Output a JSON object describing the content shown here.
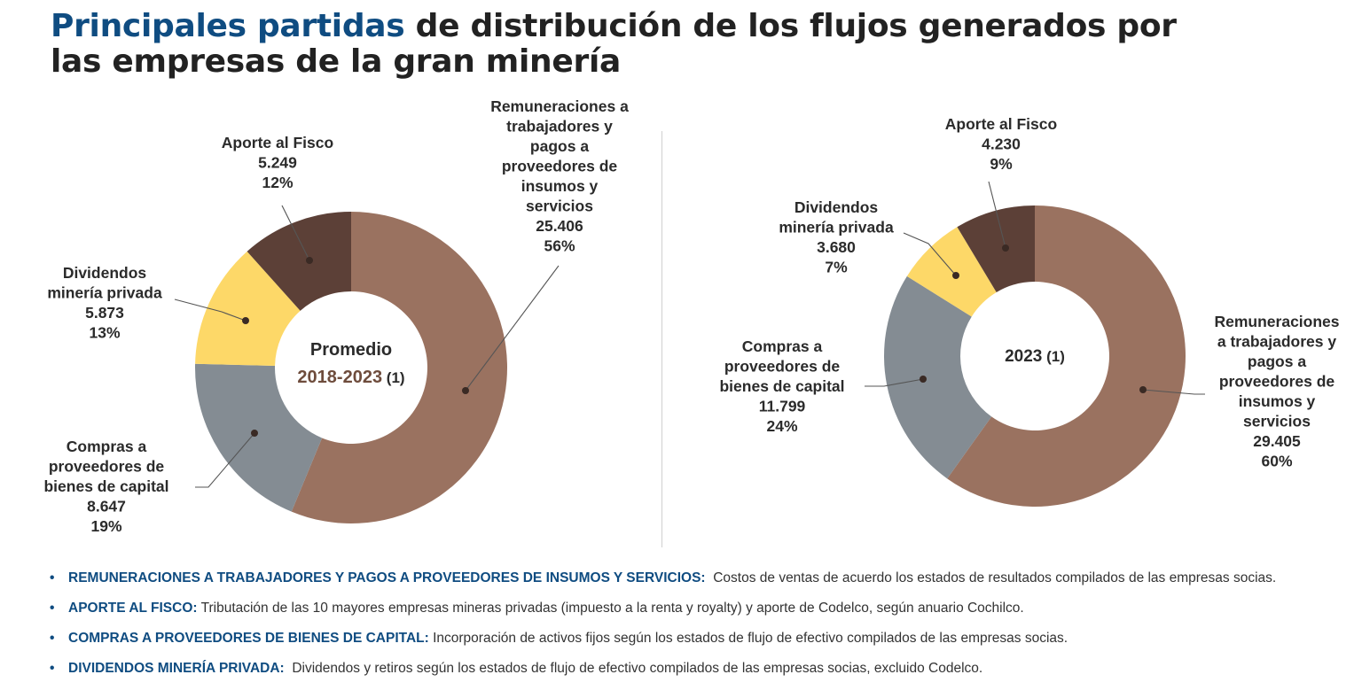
{
  "title": {
    "highlight": "Principales partidas",
    "rest_line1": " de distribución de los flujos generados por",
    "line2": "las empresas de la gran minería"
  },
  "colors": {
    "title_highlight": "#0f4c81",
    "remuneraciones": "#9a7260",
    "compras": "#848c93",
    "dividendos": "#fdd868",
    "fisco": "#5c4037",
    "center_year_avg": "#6e4c3c"
  },
  "chart_data": [
    {
      "type": "pie",
      "variant": "donut",
      "center_label": [
        "Promedio",
        "2018-2023",
        "(1)"
      ],
      "categories": [
        "Remuneraciones a trabajadores y pagos a proveedores de insumos y servicios",
        "Compras a proveedores de bienes de capital",
        "Dividendos minería privada",
        "Aporte al Fisco"
      ],
      "values": [
        25406,
        8647,
        5873,
        5249
      ],
      "value_labels": [
        "25.406",
        "8.647",
        "5.873",
        "5.249"
      ],
      "percent_labels": [
        "56%",
        "19%",
        "13%",
        "12%"
      ],
      "label_lines": [
        [
          "Remuneraciones a",
          "trabajadores y",
          "pagos a",
          "proveedores de",
          "insumos y",
          "servicios",
          "25.406",
          "56%"
        ],
        [
          "Compras a",
          "proveedores de",
          "bienes de capital",
          "8.647",
          "19%"
        ],
        [
          "Dividendos",
          "minería privada",
          "5.873",
          "13%"
        ],
        [
          "Aporte al Fisco",
          "5.249",
          "12%"
        ]
      ]
    },
    {
      "type": "pie",
      "variant": "donut",
      "center_label": [
        "2023",
        "(1)"
      ],
      "categories": [
        "Remuneraciones a trabajadores y pagos a proveedores de insumos y servicios",
        "Compras a proveedores de bienes de capital",
        "Dividendos minería privada",
        "Aporte al Fisco"
      ],
      "values": [
        29405,
        11799,
        3680,
        4230
      ],
      "value_labels": [
        "29.405",
        "11.799",
        "3.680",
        "4.230"
      ],
      "percent_labels": [
        "60%",
        "24%",
        "7%",
        "9%"
      ],
      "label_lines": [
        [
          "Remuneraciones",
          "a trabajadores y",
          "pagos a",
          "proveedores de",
          "insumos y",
          "servicios",
          "29.405",
          "60%"
        ],
        [
          "Compras a",
          "proveedores de",
          "bienes de capital",
          "11.799",
          "24%"
        ],
        [
          "Dividendos",
          "minería privada",
          "3.680",
          "7%"
        ],
        [
          "Aporte al Fisco",
          "4.230",
          "9%"
        ]
      ]
    }
  ],
  "bullets": [
    {
      "term": "REMUNERACIONES A TRABAJADORES Y PAGOS A PROVEEDORES DE INSUMOS Y SERVICIOS:",
      "text": "Costos de ventas de acuerdo los estados de resultados compilados de las empresas socias."
    },
    {
      "term": "APORTE AL FISCO:",
      "text": "Tributación de las 10 mayores empresas mineras privadas (impuesto a la renta y royalty) y aporte de Codelco, según anuario Cochilco."
    },
    {
      "term": "COMPRAS A PROVEEDORES DE BIENES DE CAPITAL:",
      "text": "Incorporación de activos fijos según los estados de flujo de efectivo compilados de las empresas socias."
    },
    {
      "term": "DIVIDENDOS MINERÍA PRIVADA:",
      "text": "Dividendos y retiros según los estados de flujo de efectivo compilados de las empresas socias, excluido Codelco."
    }
  ]
}
